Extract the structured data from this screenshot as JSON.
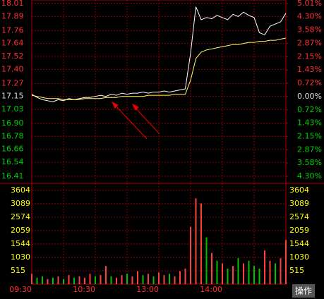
{
  "chart_data": {
    "type": "intraday",
    "xlim": [
      0,
      240
    ],
    "xticks": [
      {
        "value": 0,
        "label": "09:30"
      },
      {
        "value": 60,
        "label": "10:30"
      },
      {
        "value": 120,
        "label": "13:00"
      },
      {
        "value": 180,
        "label": "14:00"
      }
    ],
    "ylim": [
      16.41,
      18.01
    ],
    "yticks": [
      18.01,
      17.89,
      17.76,
      17.64,
      17.52,
      {
        "value": 17.4,
        "label": "17.40"
      },
      17.27,
      17.15,
      17.03,
      {
        "value": 16.9,
        "label": "16.90"
      },
      16.78,
      16.66,
      16.54,
      16.41
    ],
    "y2lim": [
      -4.3,
      5.01
    ],
    "y2ticks": [
      {
        "value": 5.01,
        "label": "5.01%"
      },
      {
        "value": 4.3,
        "label": "4.30%"
      },
      {
        "value": 3.58,
        "label": "3.58%"
      },
      {
        "value": 2.87,
        "label": "2.87%"
      },
      {
        "value": 2.15,
        "label": "2.15%"
      },
      {
        "value": 1.43,
        "label": "1.43%"
      },
      {
        "value": 0.72,
        "label": "0.72%"
      },
      {
        "value": 0,
        "label": "0.00%"
      },
      {
        "value": -0.72,
        "label": "0.72%"
      },
      {
        "value": -1.43,
        "label": "1.43%"
      },
      {
        "value": -2.15,
        "label": "2.15%"
      },
      {
        "value": -2.87,
        "label": "2.87%"
      },
      {
        "value": -3.58,
        "label": "3.58%"
      },
      {
        "value": -4.3,
        "label": "4.30%"
      }
    ],
    "x": [
      0,
      5,
      10,
      15,
      20,
      25,
      30,
      35,
      40,
      45,
      50,
      55,
      60,
      65,
      70,
      75,
      80,
      85,
      90,
      95,
      100,
      105,
      110,
      115,
      120,
      125,
      130,
      135,
      140,
      145,
      150,
      155,
      160,
      165,
      170,
      175,
      180,
      185,
      190,
      195,
      200,
      205,
      210,
      215,
      220,
      225,
      230,
      235,
      240
    ],
    "series": [
      {
        "color": "#ffffff",
        "values": [
          17.17,
          17.14,
          17.12,
          17.11,
          17.1,
          17.12,
          17.11,
          17.13,
          17.12,
          17.13,
          17.14,
          17.14,
          17.15,
          17.16,
          17.15,
          17.17,
          17.16,
          17.18,
          17.17,
          17.18,
          17.18,
          17.19,
          17.18,
          17.19,
          17.19,
          17.2,
          17.19,
          17.2,
          17.21,
          17.22,
          17.55,
          17.98,
          17.86,
          17.88,
          17.87,
          17.9,
          17.88,
          17.86,
          17.91,
          17.89,
          17.93,
          17.9,
          17.88,
          17.74,
          17.72,
          17.8,
          17.82,
          17.84,
          17.92
        ]
      },
      {
        "color": "#ffff66",
        "values": [
          17.16,
          17.15,
          17.14,
          17.13,
          17.13,
          17.13,
          17.12,
          17.12,
          17.12,
          17.12,
          17.13,
          17.13,
          17.13,
          17.13,
          17.14,
          17.14,
          17.14,
          17.15,
          17.15,
          17.15,
          17.15,
          17.15,
          17.16,
          17.16,
          17.16,
          17.16,
          17.16,
          17.17,
          17.17,
          17.17,
          17.3,
          17.5,
          17.56,
          17.58,
          17.59,
          17.6,
          17.61,
          17.62,
          17.63,
          17.63,
          17.64,
          17.65,
          17.65,
          17.66,
          17.66,
          17.67,
          17.67,
          17.68,
          17.69
        ]
      }
    ],
    "volume": {
      "ylim": [
        0,
        3604
      ],
      "yticks": [
        3604,
        3089,
        2574,
        2059,
        1544,
        1030,
        515
      ],
      "values": [
        400,
        250,
        300,
        200,
        250,
        300,
        200,
        350,
        250,
        300,
        250,
        400,
        300,
        350,
        700,
        300,
        250,
        350,
        400,
        300,
        500,
        350,
        400,
        300,
        450,
        350,
        400,
        300,
        500,
        600,
        2200,
        3300,
        3100,
        1800,
        1200,
        900,
        800,
        600,
        700,
        1000,
        800,
        900,
        700,
        600,
        1300,
        900,
        800,
        1000,
        1700
      ],
      "colors": [
        "#ff4040",
        "#00c000",
        "#00c000",
        "#ff4040",
        "#00c000",
        "#ff4040",
        "#00c000",
        "#ff4040",
        "#00c000",
        "#ff4040",
        "#ff4040",
        "#ff4040",
        "#00c000",
        "#ff4040",
        "#ff4040",
        "#00c000",
        "#ff4040",
        "#ff4040",
        "#00c000",
        "#ff4040",
        "#ff4040",
        "#00c000",
        "#ff4040",
        "#00c000",
        "#ff4040",
        "#ff4040",
        "#00c000",
        "#ff4040",
        "#ff4040",
        "#ff4040",
        "#ff4040",
        "#ff4040",
        "#ff4040",
        "#00c000",
        "#ff4040",
        "#00c000",
        "#ff4040",
        "#00c000",
        "#ff4040",
        "#00c000",
        "#ff4040",
        "#00c000",
        "#00c000",
        "#00c000",
        "#ff4040",
        "#ff4040",
        "#00c000",
        "#ff4040",
        "#ff4040"
      ]
    },
    "button_label": "操作"
  }
}
